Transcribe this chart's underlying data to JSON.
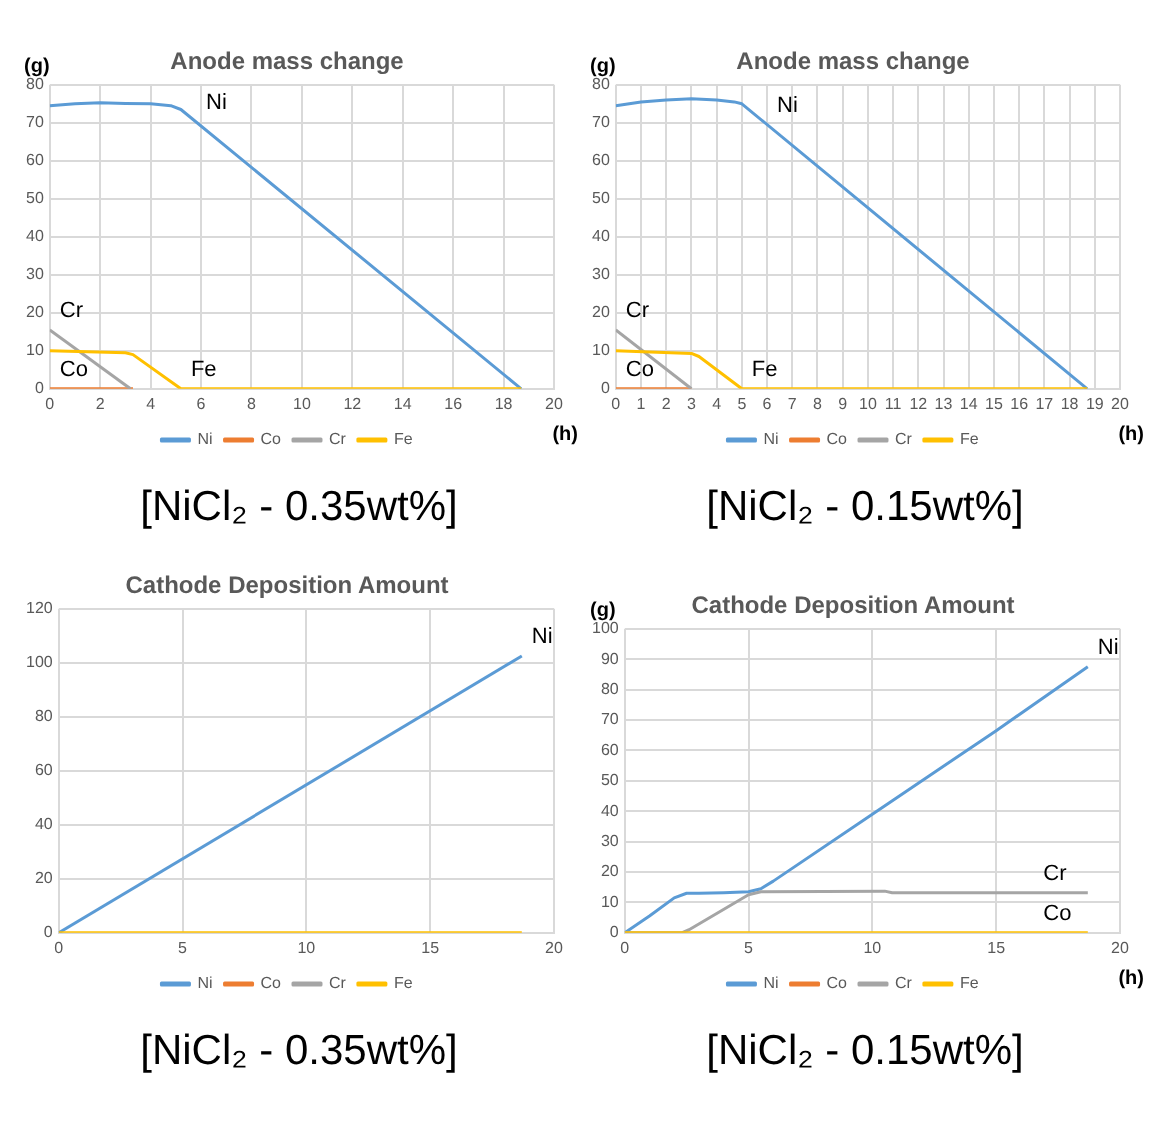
{
  "chart_data": [
    {
      "type": "line",
      "title": "Anode mass change",
      "ylabel": "(g)",
      "xlabel": "(h)",
      "xlim": [
        0,
        20
      ],
      "xticks": [
        0,
        2,
        4,
        6,
        8,
        10,
        12,
        14,
        16,
        18,
        20
      ],
      "ylim": [
        0,
        80
      ],
      "yticks": [
        0,
        10,
        20,
        30,
        40,
        50,
        60,
        70,
        80
      ],
      "grid": true,
      "legend": "bottom",
      "marker": "none",
      "series": [
        {
          "name": "Ni",
          "color": "#5b9bd5",
          "x": [
            0,
            1,
            2,
            3,
            4,
            4.8,
            5.2,
            18.7
          ],
          "values": [
            74.5,
            75,
            75.3,
            75.1,
            75,
            74.5,
            73.5,
            0
          ]
        },
        {
          "name": "Co",
          "color": "#ed7d31",
          "x": [
            0,
            3.3
          ],
          "values": [
            0,
            0
          ]
        },
        {
          "name": "Cr",
          "color": "#a5a5a5",
          "x": [
            0,
            3.2
          ],
          "values": [
            15.5,
            0
          ]
        },
        {
          "name": "Fe",
          "color": "#ffc000",
          "x": [
            0,
            3,
            3.3,
            5.2,
            18.7
          ],
          "values": [
            10,
            9.5,
            9,
            0,
            0
          ]
        }
      ],
      "annotations": [
        {
          "text": "Ni",
          "x": 5.8,
          "y": 70.2
        },
        {
          "text": "Cr",
          "x": 0,
          "y": 15.5
        },
        {
          "text": "Fe",
          "x": 5.2,
          "y": 0
        },
        {
          "text": "Co",
          "x": 0,
          "y": 0
        },
        "[NiCl₂ - 0.35wt%]"
      ]
    },
    {
      "type": "line",
      "title": "Anode mass change",
      "ylabel": "(g)",
      "xlabel": "(h)",
      "xlim": [
        0,
        20
      ],
      "xticks": [
        0,
        1,
        2,
        3,
        4,
        5,
        6,
        7,
        8,
        9,
        10,
        11,
        12,
        13,
        14,
        15,
        16,
        17,
        18,
        19,
        20
      ],
      "ylim": [
        0,
        80
      ],
      "yticks": [
        0,
        10,
        20,
        30,
        40,
        50,
        60,
        70,
        80
      ],
      "grid": true,
      "legend": "bottom",
      "marker": "none",
      "series": [
        {
          "name": "Ni",
          "color": "#5b9bd5",
          "x": [
            0,
            1,
            2,
            3,
            4,
            4.7,
            5,
            18.7
          ],
          "values": [
            74.5,
            75.5,
            76,
            76.3,
            76,
            75.5,
            75,
            0
          ]
        },
        {
          "name": "Co",
          "color": "#ed7d31",
          "x": [
            0,
            3
          ],
          "values": [
            0,
            0
          ]
        },
        {
          "name": "Cr",
          "color": "#a5a5a5",
          "x": [
            0,
            3
          ],
          "values": [
            15.5,
            0
          ]
        },
        {
          "name": "Fe",
          "color": "#ffc000",
          "x": [
            0,
            3,
            3.3,
            5,
            18.7
          ],
          "values": [
            10,
            9.3,
            8.5,
            0,
            0
          ]
        }
      ],
      "annotations": [
        {
          "text": "Ni",
          "x": 6,
          "y": 69.5
        },
        {
          "text": "Cr",
          "x": 0,
          "y": 15.5
        },
        {
          "text": "Fe",
          "x": 5,
          "y": 0
        },
        {
          "text": "Co",
          "x": 0,
          "y": 0
        },
        "[NiCl₂ - 0.15wt%]"
      ]
    },
    {
      "type": "line",
      "title": "Cathode Deposition Amount",
      "xlim": [
        0,
        20
      ],
      "xticks": [
        0,
        5,
        10,
        15,
        20
      ],
      "ylim": [
        0,
        120
      ],
      "yticks": [
        0,
        20,
        40,
        60,
        80,
        100,
        120
      ],
      "grid": true,
      "legend": "bottom",
      "marker": "none",
      "series": [
        {
          "name": "Ni",
          "color": "#5b9bd5",
          "x": [
            0,
            18.7
          ],
          "values": [
            0,
            102.5
          ]
        },
        {
          "name": "Co",
          "color": "#ed7d31"
        },
        {
          "name": "Cr",
          "color": "#a5a5a5"
        },
        {
          "name": "Fe",
          "color": "#ffc000",
          "x": [
            0,
            18.7
          ],
          "values": [
            0,
            0
          ]
        }
      ],
      "annotations": [
        {
          "text": "Ni",
          "x": 18.7,
          "y": 102.5
        },
        "[NiCl₂ - 0.35wt%]"
      ]
    },
    {
      "type": "line",
      "title": "Cathode Deposition Amount",
      "ylabel": "(g)",
      "xlabel": "(h)",
      "xlim": [
        0,
        20
      ],
      "xticks": [
        0,
        5,
        10,
        15,
        20
      ],
      "ylim": [
        0,
        100
      ],
      "yticks": [
        0,
        10,
        20,
        30,
        40,
        50,
        60,
        70,
        80,
        90,
        100
      ],
      "grid": true,
      "legend": "bottom",
      "marker": "none",
      "series": [
        {
          "name": "Ni",
          "color": "#5b9bd5",
          "x": [
            0,
            1,
            2,
            2.5,
            3,
            4,
            5,
            5.5,
            6,
            10,
            15,
            18.7
          ],
          "values": [
            0,
            5.5,
            11.5,
            13,
            13,
            13.2,
            13.5,
            14.5,
            17,
            39,
            66.5,
            87.5
          ]
        },
        {
          "name": "Co",
          "color": "#ed7d31"
        },
        {
          "name": "Cr",
          "color": "#a5a5a5",
          "x": [
            0,
            2.3,
            2.6,
            5,
            5.5,
            10.5,
            10.8,
            18.7
          ],
          "values": [
            0,
            0,
            1,
            12.5,
            13.5,
            13.7,
            13.2,
            13.2
          ]
        },
        {
          "name": "Fe",
          "color": "#ffc000",
          "x": [
            0,
            18.7
          ],
          "values": [
            0,
            0
          ]
        }
      ],
      "annotations": [
        {
          "text": "Ni",
          "x": 18.7,
          "y": 87.5
        },
        {
          "text": "Cr",
          "x": 16.5,
          "y": 13.2
        },
        {
          "text": "Co",
          "x": 16.5,
          "y": 0
        },
        "[NiCl₂ - 0.15wt%]"
      ]
    }
  ]
}
